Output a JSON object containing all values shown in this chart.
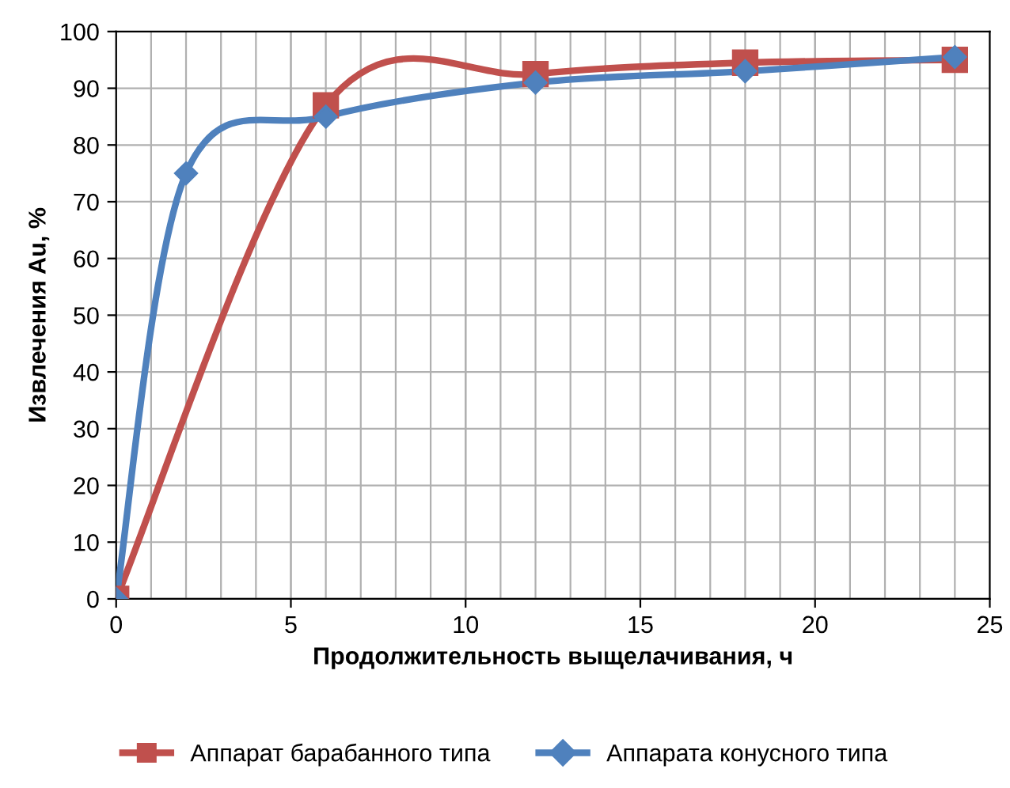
{
  "chart_data": {
    "type": "line",
    "xlabel": "Продолжительность выщелачивания, ч",
    "ylabel": "Извлечения Au, %",
    "xlim": [
      0,
      25
    ],
    "xticks": [
      0,
      5,
      10,
      15,
      20,
      25
    ],
    "ylim": [
      0,
      100
    ],
    "yticks": [
      0,
      10,
      20,
      30,
      40,
      50,
      60,
      70,
      80,
      90,
      100
    ],
    "grid": true,
    "legend": "bottom",
    "line_style": "solid",
    "series": [
      {
        "name": "Аппарат барабанного типа",
        "color": "#c0504d",
        "marker": "square",
        "x": [
          0,
          6,
          12,
          18,
          24
        ],
        "values": [
          0,
          87,
          92.5,
          94.5,
          95
        ]
      },
      {
        "name": "Аппарата конусного типа",
        "color": "#4f81bd",
        "marker": "diamond",
        "x": [
          0,
          2,
          6,
          12,
          18,
          24
        ],
        "values": [
          0,
          75,
          85,
          91,
          93,
          95.5
        ]
      }
    ]
  }
}
